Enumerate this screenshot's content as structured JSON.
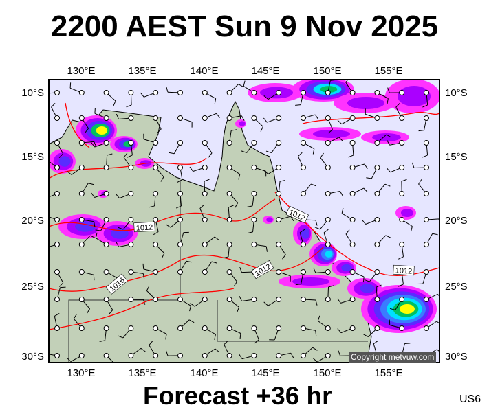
{
  "title": "2200 AEST Sun 9 Nov 2025",
  "footer": "Forecast +36 hr",
  "code": "US6",
  "copyright": "Copyright metvuw.com",
  "lon_ticks": [
    "130°E",
    "135°E",
    "140°E",
    "145°E",
    "150°E",
    "155°E"
  ],
  "lat_ticks": [
    "10°S",
    "15°S",
    "20°S",
    "25°S",
    "30°S"
  ],
  "isobar_labels": [
    "1012",
    "1012",
    "1012",
    "1012",
    "1016"
  ],
  "colors": {
    "sea": "#e6e6ff",
    "land": "#c2d0b8",
    "isobar": "#ff0000",
    "rain": [
      "#ff33ff",
      "#aa00ff",
      "#5a2cff",
      "#3a7cff",
      "#00e0ff",
      "#00c060",
      "#ffff00"
    ]
  }
}
